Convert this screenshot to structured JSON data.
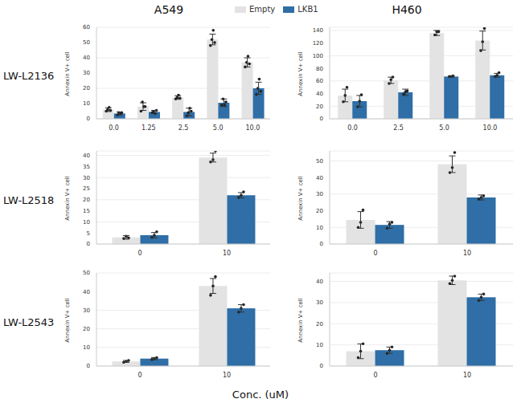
{
  "columns": [
    "A549",
    "H460"
  ],
  "rows": [
    "LW-L2136",
    "LW-L2518",
    "LW-L2543"
  ],
  "x_label": "Conc. (uM)",
  "legend": "top",
  "chart_data": [
    {
      "type": "bar",
      "y_label": "Annexin V+ cell",
      "categories": [
        "0.0",
        "1.25",
        "2.5",
        "5.0",
        "10.0"
      ],
      "ylim": [
        0,
        60
      ],
      "yticks": [
        0,
        10,
        20,
        30,
        40,
        50,
        60
      ],
      "grid": true,
      "series": [
        {
          "name": "Empty",
          "color": "#e3e3e3",
          "values": [
            6,
            8,
            14,
            52,
            37
          ],
          "errors": [
            1.2,
            2.5,
            1.2,
            3.5,
            3
          ],
          "points": [
            [
              5,
              6,
              7.5,
              5.5
            ],
            [
              5,
              11,
              8,
              8
            ],
            [
              13,
              14,
              15.5,
              13.5
            ],
            [
              48,
              52,
              58,
              50
            ],
            [
              34,
              37,
              41,
              36
            ]
          ]
        },
        {
          "name": "LKB1",
          "color": "#2f6ea6",
          "values": [
            3.5,
            4.5,
            4.5,
            10.5,
            20
          ],
          "errors": [
            1,
            1,
            2.5,
            2.5,
            4
          ],
          "points": [
            [
              2.5,
              4,
              3.5,
              4
            ],
            [
              4,
              5,
              3.5,
              5.5
            ],
            [
              2,
              4,
              7,
              5
            ],
            [
              9,
              13,
              9,
              11
            ],
            [
              16,
              20,
              26,
              18
            ]
          ]
        }
      ]
    },
    {
      "type": "bar",
      "y_label": "Annexin V+ cell",
      "categories": [
        "0.0",
        "2.5",
        "5.0",
        "10.0"
      ],
      "ylim": [
        0,
        145
      ],
      "yticks": [
        0,
        20,
        40,
        60,
        80,
        100,
        120,
        140
      ],
      "grid": true,
      "series": [
        {
          "name": "Empty",
          "color": "#e3e3e3",
          "values": [
            37,
            61,
            136,
            124
          ],
          "errors": [
            10,
            5,
            4,
            15
          ],
          "points": [
            [
              27,
              37,
              50
            ],
            [
              56,
              62,
              66
            ],
            [
              133,
              138,
              138
            ],
            [
              108,
              122,
              143
            ]
          ]
        },
        {
          "name": "LKB1",
          "color": "#2f6ea6",
          "values": [
            28,
            42,
            67,
            69
          ],
          "errors": [
            9,
            5,
            1,
            3
          ],
          "points": [
            [
              19,
              28,
              38
            ],
            [
              39,
              43,
              44
            ],
            [
              67,
              67,
              68
            ],
            [
              67,
              69,
              73
            ]
          ]
        }
      ]
    },
    {
      "type": "bar",
      "y_label": "Annexin V+ cell",
      "categories": [
        "0",
        "10"
      ],
      "ylim": [
        0,
        42
      ],
      "yticks": [
        0,
        5,
        10,
        15,
        20,
        25,
        30,
        35,
        40
      ],
      "grid": true,
      "series": [
        {
          "name": "Empty",
          "color": "#e3e3e3",
          "values": [
            3,
            39
          ],
          "errors": [
            0.8,
            2
          ],
          "points": [
            [
              2.5,
              3.5,
              2.8
            ],
            [
              37,
              38,
              42
            ]
          ]
        },
        {
          "name": "LKB1",
          "color": "#2f6ea6",
          "values": [
            4,
            22
          ],
          "errors": [
            1.2,
            1.2
          ],
          "points": [
            [
              3,
              4,
              5.5
            ],
            [
              21,
              22,
              23.5
            ]
          ]
        }
      ]
    },
    {
      "type": "bar",
      "y_label": "Annexin V+ cell",
      "categories": [
        "0",
        "10"
      ],
      "ylim": [
        0,
        56
      ],
      "yticks": [
        0,
        10,
        20,
        30,
        40,
        50
      ],
      "grid": true,
      "series": [
        {
          "name": "Empty",
          "color": "#e3e3e3",
          "values": [
            14.5,
            48
          ],
          "errors": [
            5,
            5
          ],
          "points": [
            [
              10,
              13,
              20.5
            ],
            [
              43,
              46,
              55
            ]
          ]
        },
        {
          "name": "LKB1",
          "color": "#2f6ea6",
          "values": [
            11.5,
            28
          ],
          "errors": [
            2,
            1.5
          ],
          "points": [
            [
              9.5,
              12,
              13
            ],
            [
              27,
              28,
              29
            ]
          ]
        }
      ]
    },
    {
      "type": "bar",
      "y_label": "Annexin V+ cell",
      "categories": [
        "0",
        "10"
      ],
      "ylim": [
        0,
        50
      ],
      "yticks": [
        0,
        10,
        20,
        30,
        40,
        50
      ],
      "grid": true,
      "series": [
        {
          "name": "Empty",
          "color": "#e3e3e3",
          "values": [
            2.5,
            43
          ],
          "errors": [
            0.5,
            4
          ],
          "points": [
            [
              2,
              2.5,
              3
            ],
            [
              38,
              43,
              48
            ]
          ]
        },
        {
          "name": "LKB1",
          "color": "#2f6ea6",
          "values": [
            4,
            31
          ],
          "errors": [
            0.6,
            2
          ],
          "points": [
            [
              3.5,
              4,
              4.5
            ],
            [
              29,
              31,
              33
            ]
          ]
        }
      ]
    },
    {
      "type": "bar",
      "y_label": "Annexin V+ cell",
      "categories": [
        "0",
        "10"
      ],
      "ylim": [
        0,
        44
      ],
      "yticks": [
        0,
        10,
        20,
        30,
        40
      ],
      "grid": true,
      "series": [
        {
          "name": "Empty",
          "color": "#e3e3e3",
          "values": [
            7,
            40.5
          ],
          "errors": [
            3.5,
            2
          ],
          "points": [
            [
              4,
              7,
              10.5
            ],
            [
              39,
              40.5,
              42.5
            ]
          ]
        },
        {
          "name": "LKB1",
          "color": "#2f6ea6",
          "values": [
            7.5,
            32.5
          ],
          "errors": [
            1.5,
            1.5
          ],
          "points": [
            [
              6,
              7.5,
              9
            ],
            [
              31,
              32.5,
              34
            ]
          ]
        }
      ]
    }
  ]
}
